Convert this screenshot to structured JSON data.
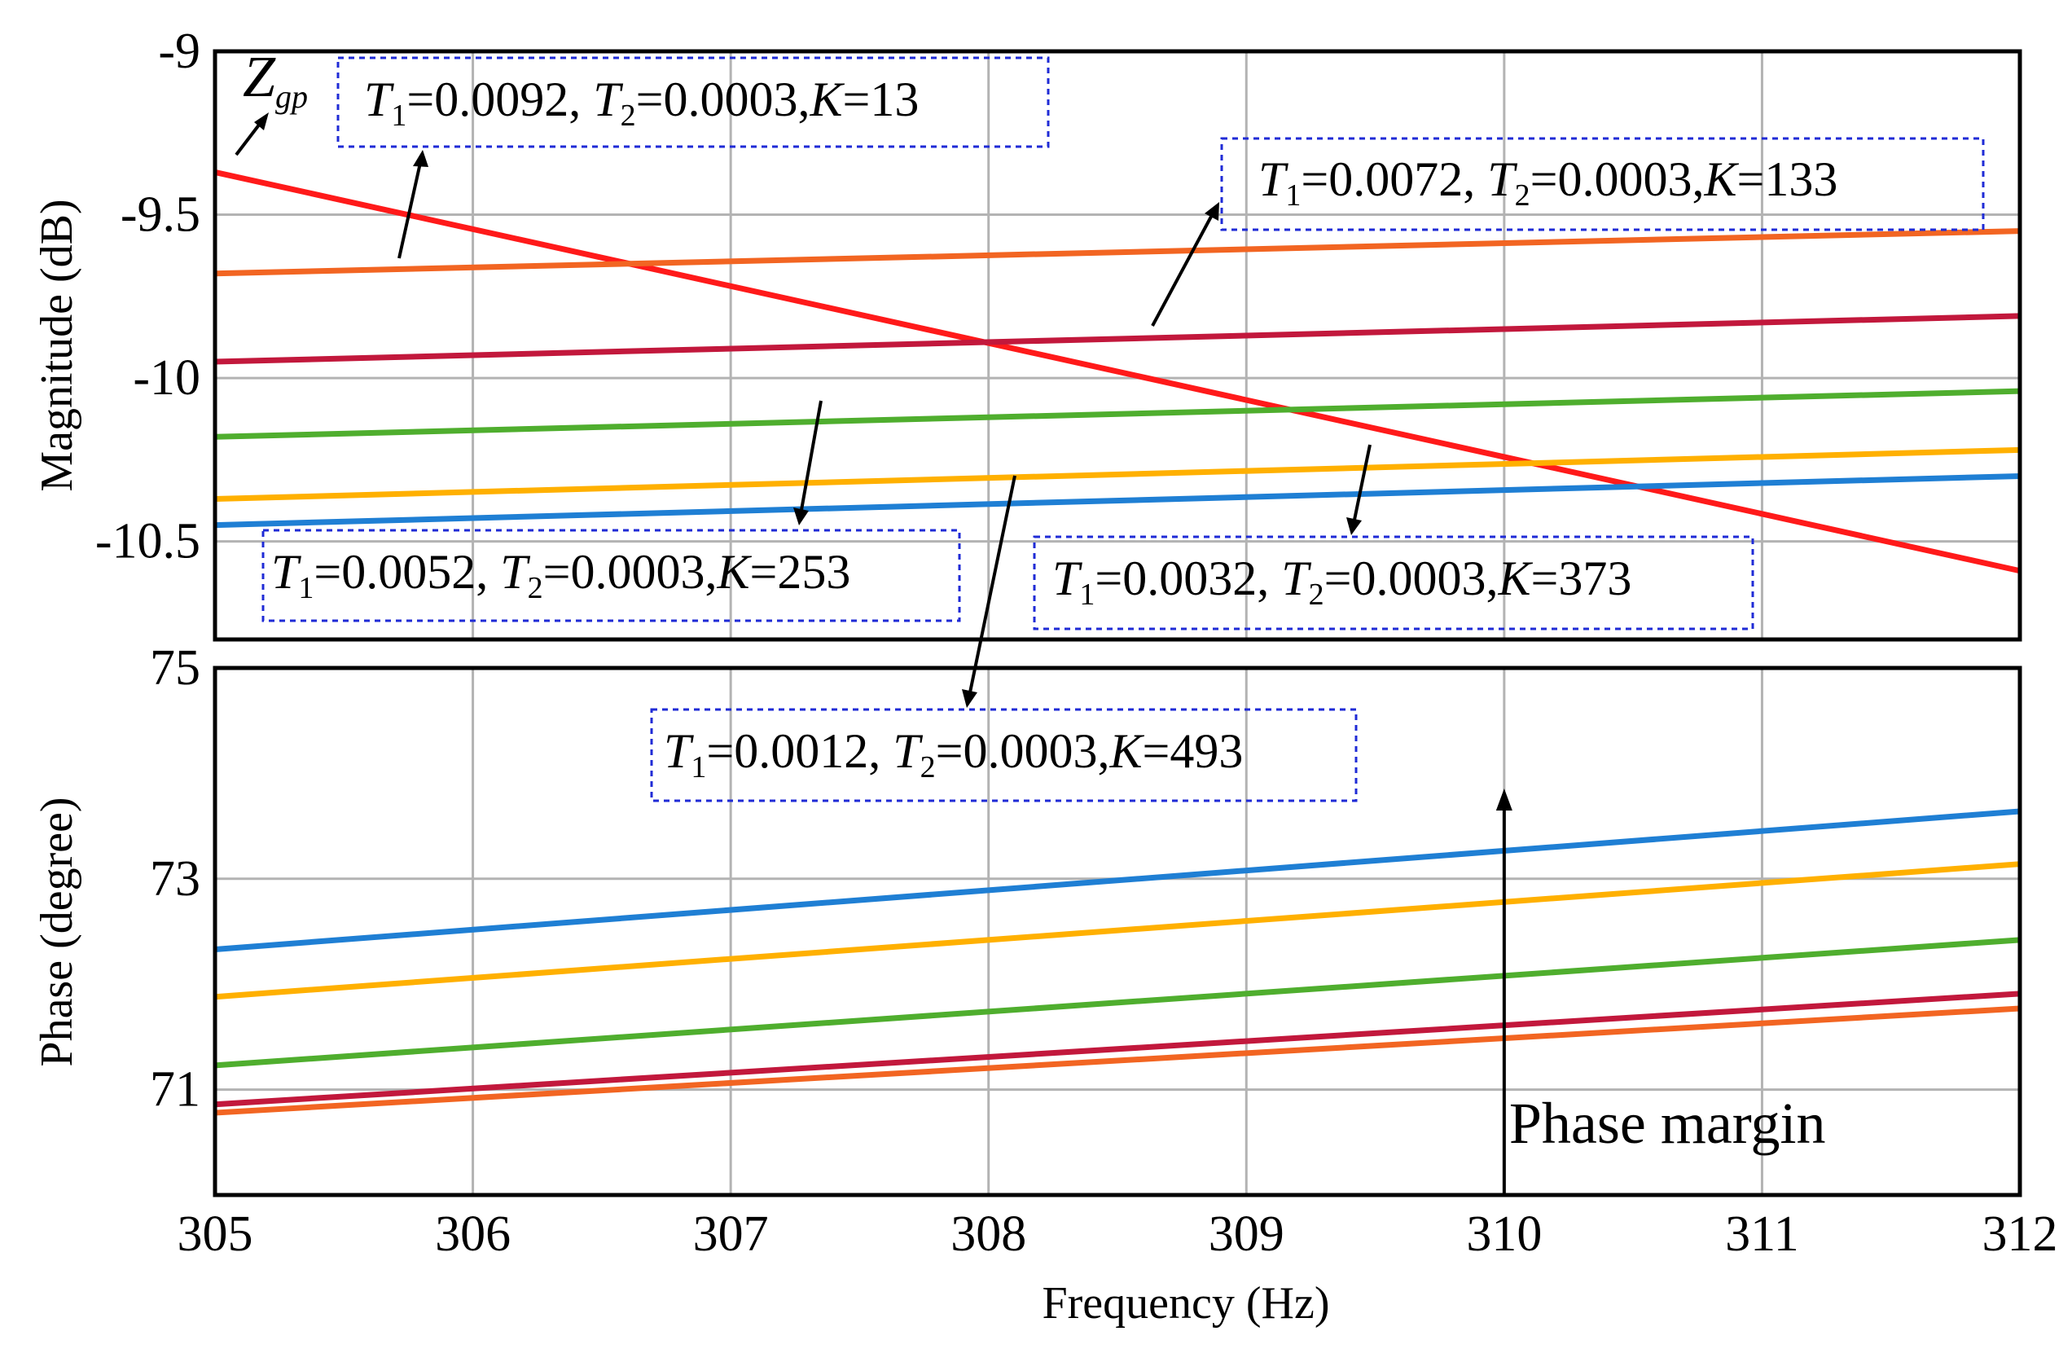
{
  "chart_data": [
    {
      "type": "line",
      "panel": "magnitude",
      "xlabel": "Frequency  (Hz)",
      "ylabel": "Magnitude (dB)",
      "xlim": [
        305,
        312
      ],
      "ylim": [
        -10.8,
        -9
      ],
      "xticks": [
        "305",
        "306",
        "307",
        "308",
        "309",
        "310",
        "311",
        "312"
      ],
      "yticks": [
        {
          "value": -9,
          "label": "-9"
        },
        {
          "value": -9.5,
          "label": "-9.5"
        },
        {
          "value": -10,
          "label": "-10"
        },
        {
          "value": -10.5,
          "label": "-10.5"
        }
      ],
      "grid": true,
      "series": [
        {
          "name": "Zgp",
          "color": "#ff1a1a",
          "x": [
            305,
            312
          ],
          "values": [
            -9.37,
            -10.59
          ]
        },
        {
          "name": "T1=0.0092, T2=0.0003, K=13",
          "color": "#f26522",
          "x": [
            305,
            312
          ],
          "values": [
            -9.68,
            -9.55
          ]
        },
        {
          "name": "T1=0.0072, T2=0.0003, K=133",
          "color": "#c2183c",
          "x": [
            305,
            312
          ],
          "values": [
            -9.95,
            -9.81
          ]
        },
        {
          "name": "T1=0.0052, T2=0.0003, K=253",
          "color": "#4fae2e",
          "x": [
            305,
            312
          ],
          "values": [
            -10.18,
            -10.04
          ]
        },
        {
          "name": "T1=0.0032, T2=0.0003, K=373",
          "color": "#ffb000",
          "x": [
            305,
            312
          ],
          "values": [
            -10.37,
            -10.22
          ]
        },
        {
          "name": "T1=0.0012, T2=0.0003, K=493",
          "color": "#1f7fd4",
          "x": [
            305,
            312
          ],
          "values": [
            -10.45,
            -10.3
          ]
        }
      ]
    },
    {
      "type": "line",
      "panel": "phase",
      "xlabel": "Frequency  (Hz)",
      "ylabel": "Phase (degree)",
      "xlim": [
        305,
        312
      ],
      "ylim": [
        70,
        75
      ],
      "xticks": [
        "305",
        "306",
        "307",
        "308",
        "309",
        "310",
        "311",
        "312"
      ],
      "yticks": [
        {
          "value": 75,
          "label": "75"
        },
        {
          "value": 73,
          "label": "73"
        },
        {
          "value": 71,
          "label": "71"
        }
      ],
      "grid": true,
      "series": [
        {
          "name": "T1=0.0012, T2=0.0003, K=493",
          "color": "#1f7fd4",
          "x": [
            305,
            312
          ],
          "values": [
            72.33,
            73.64
          ]
        },
        {
          "name": "T1=0.0032, T2=0.0003, K=373",
          "color": "#ffb000",
          "x": [
            305,
            312
          ],
          "values": [
            71.88,
            73.14
          ]
        },
        {
          "name": "T1=0.0052, T2=0.0003, K=253",
          "color": "#4fae2e",
          "x": [
            305,
            312
          ],
          "values": [
            71.23,
            72.42
          ]
        },
        {
          "name": "T1=0.0072, T2=0.0003, K=133",
          "color": "#c2183c",
          "x": [
            305,
            312
          ],
          "values": [
            70.86,
            71.91
          ]
        },
        {
          "name": "T1=0.0092, T2=0.0003, K=13",
          "color": "#f26522",
          "x": [
            305,
            312
          ],
          "values": [
            70.78,
            71.77
          ]
        }
      ]
    }
  ],
  "annotations": {
    "zgp": {
      "main": "Z",
      "sub": "gp"
    },
    "boxes": [
      {
        "T1": "0.0092",
        "T2": "0.0003",
        "K": "13"
      },
      {
        "T1": "0.0072",
        "T2": "0.0003",
        "K": "133"
      },
      {
        "T1": "0.0052",
        "T2": "0.0003",
        "K": "253"
      },
      {
        "T1": "0.0032",
        "T2": "0.0003",
        "K": "373"
      },
      {
        "T1": "0.0012",
        "T2": "0.0003",
        "K": "493"
      }
    ],
    "phase_margin": {
      "label": "Phase margin",
      "frequency": 310
    }
  }
}
